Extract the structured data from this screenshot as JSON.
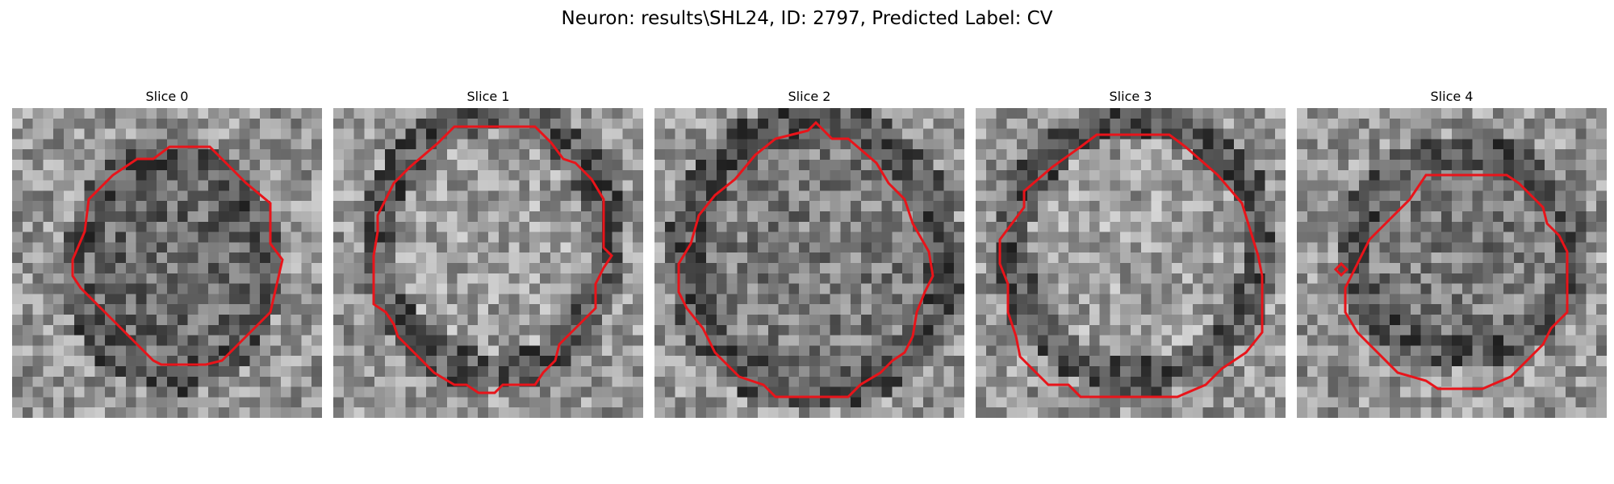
{
  "figure": {
    "title": "Neuron: results\\SHL24, ID: 2797, Predicted Label: CV"
  },
  "contour_color": "#e8141a",
  "slices": [
    {
      "title": "Slice 0",
      "center": [
        15.0,
        15.0
      ],
      "radius": [
        9.5,
        10.5
      ],
      "darkness": "dark-interior"
    },
    {
      "title": "Slice 1",
      "center": [
        15.0,
        12.5
      ],
      "radius": [
        11.0,
        12.5
      ],
      "darkness": "light-interior"
    },
    {
      "title": "Slice 2",
      "center": [
        15.0,
        14.0
      ],
      "radius": [
        12.5,
        13.0
      ],
      "darkness": "mottled"
    },
    {
      "title": "Slice 3",
      "center": [
        15.0,
        13.0
      ],
      "radius": [
        12.0,
        12.5
      ],
      "darkness": "light-interior"
    },
    {
      "title": "Slice 4",
      "center": [
        15.5,
        13.5
      ],
      "radius": [
        10.5,
        10.0
      ],
      "darkness": "mottled"
    }
  ]
}
